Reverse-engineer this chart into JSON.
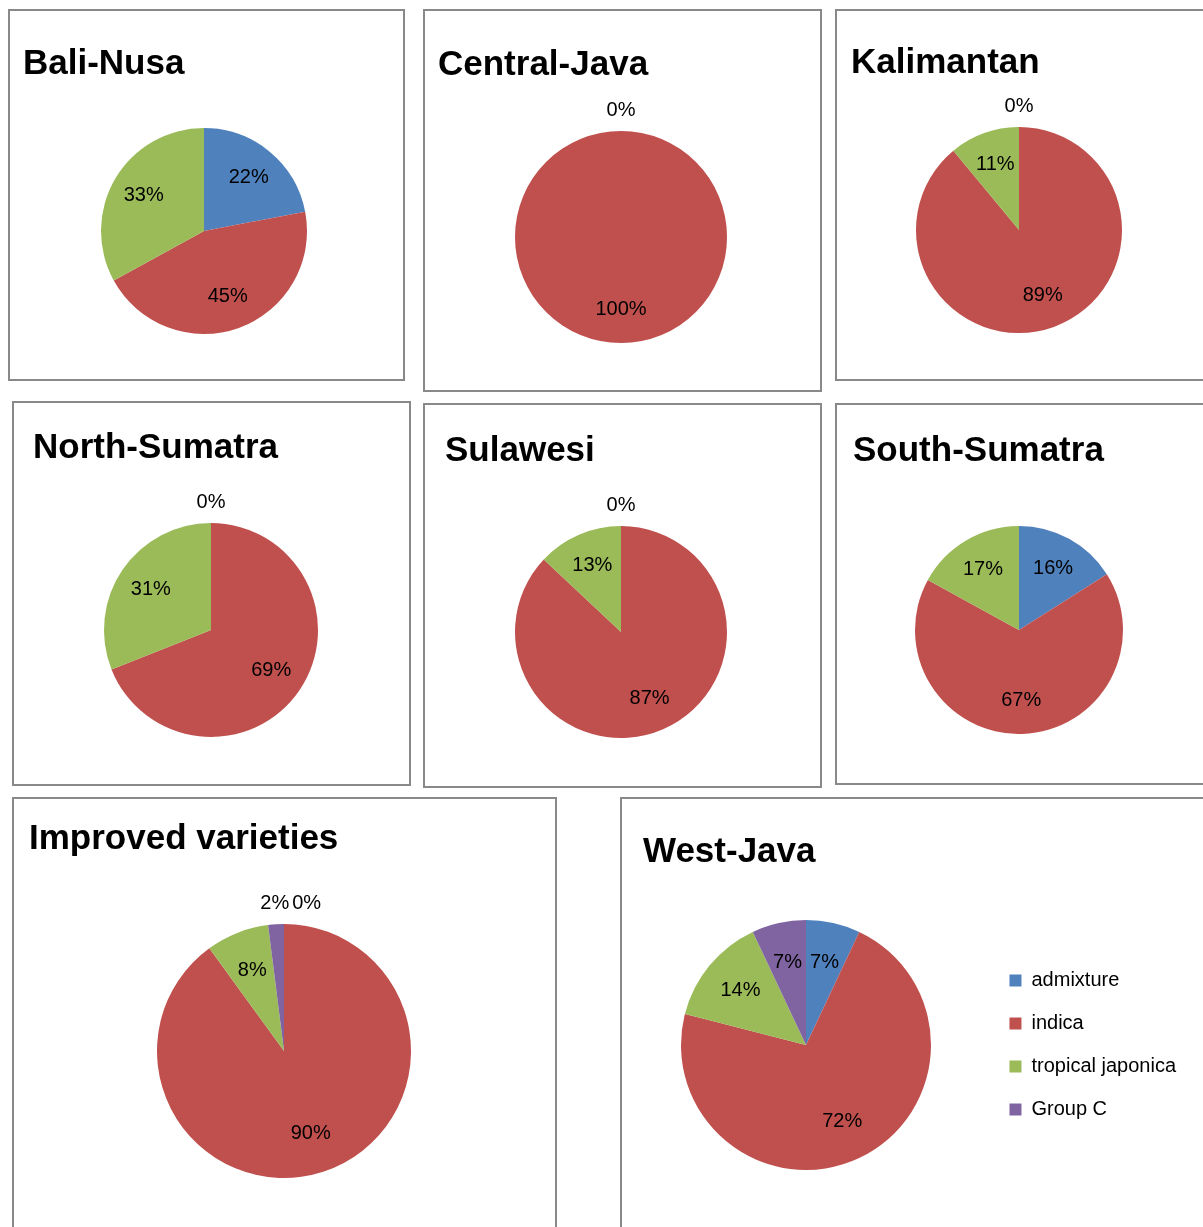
{
  "chart_data": [
    {
      "type": "pie",
      "title": "Bali-Nusa",
      "categories": [
        null,
        null,
        null
      ],
      "values": [
        22,
        45,
        33
      ],
      "colors": [
        "#4f81bd",
        "#c0504d",
        "#9bbb59"
      ],
      "value_labels": [
        "22%",
        "45%",
        "33%"
      ]
    },
    {
      "type": "pie",
      "title": "Central-Java",
      "categories": [
        null,
        null
      ],
      "values": [
        0,
        100
      ],
      "colors": [
        "#4f81bd",
        "#c0504d"
      ],
      "value_labels": [
        "0%",
        "100%"
      ]
    },
    {
      "type": "pie",
      "title": "Kalimantan",
      "categories": [
        null,
        null,
        null
      ],
      "values": [
        0,
        89,
        11
      ],
      "colors": [
        "#4f81bd",
        "#c0504d",
        "#9bbb59"
      ],
      "value_labels": [
        "0%",
        "89%",
        "11%"
      ]
    },
    {
      "type": "pie",
      "title": "North-Sumatra",
      "categories": [
        null,
        null,
        null
      ],
      "values": [
        0,
        69,
        31
      ],
      "colors": [
        "#4f81bd",
        "#c0504d",
        "#9bbb59"
      ],
      "value_labels": [
        "0%",
        "69%",
        "31%"
      ]
    },
    {
      "type": "pie",
      "title": "Sulawesi",
      "categories": [
        null,
        null,
        null
      ],
      "values": [
        0,
        87,
        13
      ],
      "colors": [
        "#4f81bd",
        "#c0504d",
        "#9bbb59"
      ],
      "value_labels": [
        "0%",
        "87%",
        "13%"
      ]
    },
    {
      "type": "pie",
      "title": "South-Sumatra",
      "categories": [
        null,
        null,
        null
      ],
      "values": [
        16,
        67,
        17
      ],
      "colors": [
        "#4f81bd",
        "#c0504d",
        "#9bbb59"
      ],
      "value_labels": [
        "16%",
        "67%",
        "17%"
      ]
    },
    {
      "type": "pie",
      "title": "Improved varieties",
      "categories": [
        null,
        null,
        null,
        null
      ],
      "values": [
        0,
        90,
        8,
        2
      ],
      "colors": [
        "#4f81bd",
        "#c0504d",
        "#9bbb59",
        "#8064a2"
      ],
      "value_labels": [
        "0%",
        "90%",
        "8%",
        "2%"
      ]
    },
    {
      "type": "pie",
      "title": "West-Java",
      "categories": [
        "admixture",
        "indica",
        "tropical japonica",
        "Group C"
      ],
      "values": [
        7,
        72,
        14,
        7
      ],
      "colors": [
        "#4f81bd",
        "#c0504d",
        "#9bbb59",
        "#8064a2"
      ],
      "value_labels": [
        "7%",
        "72%",
        "14%",
        "7%"
      ],
      "legend": "right"
    }
  ]
}
